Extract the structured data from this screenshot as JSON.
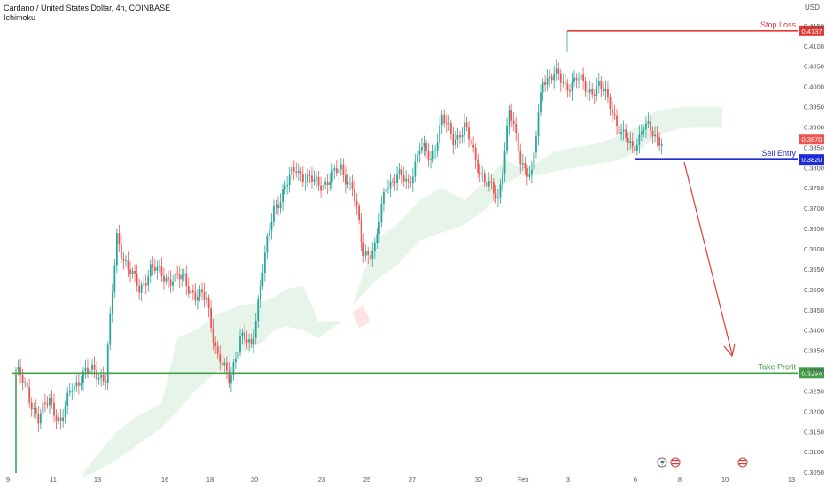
{
  "header": {
    "symbol_line": "Cardano / United States Dollar, 4h, COINBASE",
    "indicator": "Ichimoku"
  },
  "currency_label": "USD",
  "colors": {
    "up": "#26a69a",
    "down": "#ef5350",
    "cloud_bull": "#e7f4ea",
    "cloud_bear": "#fde3e3",
    "stop_loss": "#e53935",
    "sell_entry": "#1f2bd6",
    "take_profit": "#43a047",
    "price_badge": "#ef5350",
    "axis_text": "#50535e"
  },
  "chart_data": {
    "type": "candlestick",
    "title": "Cardano / United States Dollar, 4h, COINBASE",
    "ylim": [
      0.3035,
      0.4165
    ],
    "y_ticks": [
      "0.3050",
      "0.3100",
      "0.3150",
      "0.3200",
      "0.3250",
      "0.3300",
      "0.3350",
      "0.3400",
      "0.3450",
      "0.3500",
      "0.3550",
      "0.3600",
      "0.3650",
      "0.3700",
      "0.3750",
      "0.3800",
      "0.3850",
      "0.3900",
      "0.3950",
      "0.4000",
      "0.4050",
      "0.4100",
      "0.4150"
    ],
    "x_ticks": [
      "9",
      "11",
      "13",
      "16",
      "18",
      "20",
      "23",
      "25",
      "27",
      "30",
      "Feb",
      "3",
      "6",
      "8",
      "10",
      "13"
    ],
    "levels": [
      {
        "name": "Stop Loss",
        "value": 0.4137,
        "label": "0.4137"
      },
      {
        "name": "Sell Entry",
        "value": 0.382,
        "label": "0.3820"
      },
      {
        "name": "Take Profit",
        "value": 0.3294,
        "label": "0.3294"
      }
    ],
    "current_price": {
      "value": 0.387,
      "label": "0.3870"
    },
    "close_waypoints": [
      [
        0,
        0.33
      ],
      [
        5,
        0.325
      ],
      [
        10,
        0.318
      ],
      [
        15,
        0.323
      ],
      [
        20,
        0.317
      ],
      [
        25,
        0.326
      ],
      [
        30,
        0.329
      ],
      [
        35,
        0.33
      ],
      [
        40,
        0.328
      ],
      [
        45,
        0.363
      ],
      [
        50,
        0.355
      ],
      [
        55,
        0.35
      ],
      [
        60,
        0.355
      ],
      [
        65,
        0.354
      ],
      [
        70,
        0.352
      ],
      [
        75,
        0.353
      ],
      [
        80,
        0.348
      ],
      [
        85,
        0.348
      ],
      [
        90,
        0.333
      ],
      [
        95,
        0.328
      ],
      [
        100,
        0.338
      ],
      [
        105,
        0.336
      ],
      [
        110,
        0.355
      ],
      [
        115,
        0.37
      ],
      [
        120,
        0.375
      ],
      [
        125,
        0.38
      ],
      [
        130,
        0.377
      ],
      [
        135,
        0.376
      ],
      [
        140,
        0.377
      ],
      [
        145,
        0.38
      ],
      [
        150,
        0.375
      ],
      [
        155,
        0.359
      ],
      [
        160,
        0.36
      ],
      [
        165,
        0.376
      ],
      [
        170,
        0.378
      ],
      [
        175,
        0.376
      ],
      [
        180,
        0.385
      ],
      [
        185,
        0.382
      ],
      [
        190,
        0.392
      ],
      [
        195,
        0.387
      ],
      [
        200,
        0.39
      ],
      [
        205,
        0.382
      ],
      [
        210,
        0.376
      ],
      [
        215,
        0.372
      ],
      [
        220,
        0.394
      ],
      [
        225,
        0.382
      ],
      [
        230,
        0.378
      ],
      [
        235,
        0.402
      ],
      [
        240,
        0.403
      ],
      [
        245,
        0.4
      ],
      [
        250,
        0.402
      ],
      [
        255,
        0.399
      ],
      [
        260,
        0.4
      ],
      [
        265,
        0.396
      ],
      [
        270,
        0.388
      ],
      [
        275,
        0.385
      ],
      [
        280,
        0.39
      ],
      [
        285,
        0.388
      ],
      [
        288,
        0.387
      ]
    ],
    "cloud_upper_waypoints": [
      [
        30,
        0.305
      ],
      [
        45,
        0.315
      ],
      [
        55,
        0.319
      ],
      [
        65,
        0.322
      ],
      [
        72,
        0.338
      ],
      [
        80,
        0.34
      ],
      [
        90,
        0.344
      ],
      [
        100,
        0.346
      ],
      [
        110,
        0.347
      ],
      [
        115,
        0.348
      ],
      [
        120,
        0.35
      ],
      [
        128,
        0.351
      ],
      [
        135,
        0.342
      ],
      [
        145,
        0.342
      ],
      [
        150,
        0.346
      ],
      [
        160,
        0.362
      ],
      [
        170,
        0.366
      ],
      [
        180,
        0.372
      ],
      [
        190,
        0.375
      ],
      [
        200,
        0.372
      ],
      [
        210,
        0.377
      ],
      [
        218,
        0.382
      ],
      [
        225,
        0.38
      ],
      [
        232,
        0.381
      ],
      [
        240,
        0.384
      ],
      [
        250,
        0.385
      ],
      [
        260,
        0.386
      ],
      [
        270,
        0.388
      ],
      [
        280,
        0.391
      ],
      [
        285,
        0.394
      ],
      [
        300,
        0.395
      ],
      [
        315,
        0.395
      ]
    ],
    "cloud_lower_waypoints": [
      [
        30,
        0.3035
      ],
      [
        45,
        0.308
      ],
      [
        55,
        0.312
      ],
      [
        65,
        0.316
      ],
      [
        72,
        0.32
      ],
      [
        80,
        0.325
      ],
      [
        90,
        0.33
      ],
      [
        100,
        0.334
      ],
      [
        110,
        0.337
      ],
      [
        115,
        0.34
      ],
      [
        120,
        0.341
      ],
      [
        128,
        0.34
      ],
      [
        135,
        0.338
      ],
      [
        145,
        0.342
      ],
      [
        150,
        0.346
      ],
      [
        160,
        0.352
      ],
      [
        170,
        0.356
      ],
      [
        180,
        0.362
      ],
      [
        190,
        0.364
      ],
      [
        200,
        0.366
      ],
      [
        210,
        0.37
      ],
      [
        218,
        0.376
      ],
      [
        225,
        0.378
      ],
      [
        232,
        0.378
      ],
      [
        240,
        0.379
      ],
      [
        250,
        0.38
      ],
      [
        260,
        0.381
      ],
      [
        270,
        0.382
      ],
      [
        280,
        0.385
      ],
      [
        285,
        0.388
      ],
      [
        300,
        0.39
      ],
      [
        315,
        0.39
      ]
    ]
  }
}
